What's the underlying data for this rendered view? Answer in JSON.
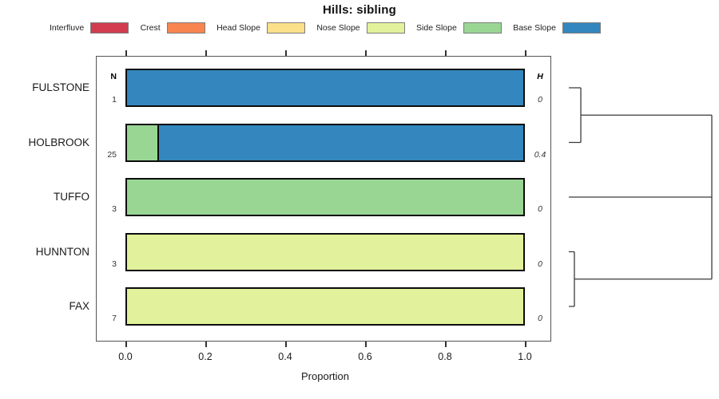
{
  "chart_data": {
    "type": "bar",
    "orientation": "horizontal",
    "stacked": true,
    "title": "Hills: sibling",
    "xlabel": "Proportion",
    "xlim": [
      0,
      1
    ],
    "xticks": [
      "0.0",
      "0.2",
      "0.4",
      "0.6",
      "0.8",
      "1.0"
    ],
    "grid": false,
    "legend_position": "top",
    "categories": [
      {
        "label": "Interfluve",
        "color": "#D13D4F"
      },
      {
        "label": "Crest",
        "color": "#F8854F"
      },
      {
        "label": "Head Slope",
        "color": "#FBDF89"
      },
      {
        "label": "Nose Slope",
        "color": "#E2F19B"
      },
      {
        "label": "Side Slope",
        "color": "#99D694"
      },
      {
        "label": "Base Slope",
        "color": "#3387BE"
      }
    ],
    "n_column_header": "N",
    "h_column_header": "H",
    "rows": [
      {
        "label": "FULSTONE",
        "n": "1",
        "h": "0",
        "segments": [
          {
            "category": "Base Slope",
            "value": 1.0
          }
        ]
      },
      {
        "label": "HOLBROOK",
        "n": "25",
        "h": "0.4",
        "segments": [
          {
            "category": "Side Slope",
            "value": 0.08
          },
          {
            "category": "Base Slope",
            "value": 0.92
          }
        ]
      },
      {
        "label": "TUFFO",
        "n": "3",
        "h": "0",
        "segments": [
          {
            "category": "Side Slope",
            "value": 1.0
          }
        ]
      },
      {
        "label": "HUNNTON",
        "n": "3",
        "h": "0",
        "segments": [
          {
            "category": "Nose Slope",
            "value": 1.0
          }
        ]
      },
      {
        "label": "FAX",
        "n": "7",
        "h": "0",
        "segments": [
          {
            "category": "Nose Slope",
            "value": 1.0
          }
        ]
      }
    ],
    "dendrogram": {
      "orientation": "right",
      "clusters": [
        {
          "type": "pair",
          "rows": [
            0,
            1
          ],
          "join_x": 0.084
        },
        {
          "type": "leaf",
          "row": 2
        },
        {
          "type": "pair",
          "rows": [
            3,
            4
          ],
          "join_x": 0.039
        }
      ],
      "root_x": 1.0
    }
  }
}
